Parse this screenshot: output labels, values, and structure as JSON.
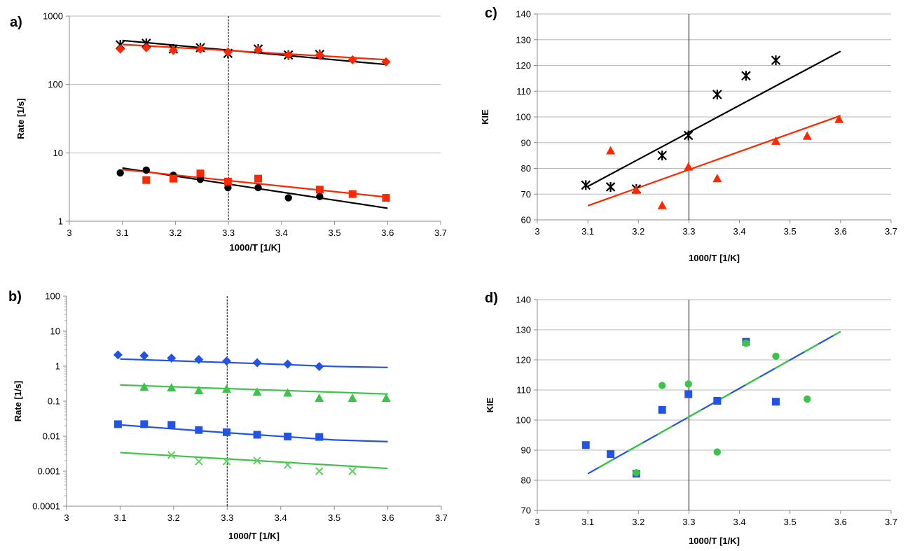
{
  "colors": {
    "black": "#000000",
    "red": "#ff2600",
    "blue": "#2353e6",
    "green": "#3cc34a",
    "light_green": "#5ed060",
    "grid": "#b9b9b9"
  },
  "chart_data": [
    {
      "panel": "a)",
      "type": "scatter",
      "xlabel": "1000/T  [1/K]",
      "ylabel": "Rate  [1/s]",
      "xlim": [
        3,
        3.7
      ],
      "xticks": [
        "3",
        "3.1",
        "3.2",
        "3.3",
        "3.4",
        "3.5",
        "3.6",
        "3.7"
      ],
      "ylim": [
        1,
        1000
      ],
      "yscale": "log",
      "yticks": [
        "1",
        "10",
        "100",
        "1000"
      ],
      "grid": "horizontal",
      "vline": 3.3,
      "series": [
        {
          "marker": "asterisk",
          "color": "black",
          "x": [
            3.096,
            3.145,
            3.196,
            3.247,
            3.299,
            3.356,
            3.413,
            3.472
          ],
          "y": [
            380,
            400,
            330,
            345,
            285,
            330,
            270,
            275
          ]
        },
        {
          "marker": "diamond",
          "color": "red",
          "x": [
            3.096,
            3.145,
            3.196,
            3.247,
            3.299,
            3.356,
            3.413,
            3.472,
            3.534,
            3.597
          ],
          "y": [
            330,
            345,
            315,
            330,
            300,
            320,
            270,
            270,
            230,
            215
          ]
        },
        {
          "marker": "circle",
          "color": "black",
          "x": [
            3.096,
            3.145,
            3.196,
            3.247,
            3.299,
            3.356,
            3.413,
            3.472
          ],
          "y": [
            5.1,
            5.6,
            4.7,
            4.1,
            3.1,
            3.1,
            2.2,
            2.3
          ]
        },
        {
          "marker": "square",
          "color": "red",
          "x": [
            3.145,
            3.196,
            3.247,
            3.299,
            3.356,
            3.472,
            3.534,
            3.597
          ],
          "y": [
            4.0,
            4.2,
            5.0,
            3.8,
            4.2,
            2.9,
            2.5,
            2.2
          ]
        }
      ],
      "fits": [
        {
          "color": "black",
          "x": [
            3.1,
            3.6
          ],
          "y": [
            440,
            195
          ]
        },
        {
          "color": "red",
          "x": [
            3.1,
            3.6
          ],
          "y": [
            385,
            230
          ]
        },
        {
          "color": "black",
          "x": [
            3.1,
            3.6
          ],
          "y": [
            6.0,
            1.55
          ]
        },
        {
          "color": "red",
          "x": [
            3.1,
            3.6
          ],
          "y": [
            5.7,
            2.25
          ]
        }
      ]
    },
    {
      "panel": "b)",
      "type": "scatter",
      "xlabel": "1000/T  [1/K]",
      "ylabel": "Rate  [1/s]",
      "xlim": [
        3,
        3.7
      ],
      "xticks": [
        "3",
        "3.1",
        "3.2",
        "3.3",
        "3.4",
        "3.5",
        "3.6",
        "3.7"
      ],
      "ylim": [
        0.0001,
        100
      ],
      "yscale": "log",
      "yticks": [
        "0.0001",
        "0.001",
        "0.01",
        "0.1",
        "1",
        "10",
        "100"
      ],
      "grid": "none",
      "vline": 3.3,
      "series": [
        {
          "marker": "diamond",
          "color": "blue",
          "x": [
            3.096,
            3.145,
            3.196,
            3.247,
            3.299,
            3.356,
            3.413,
            3.472
          ],
          "y": [
            2.1,
            2.0,
            1.7,
            1.55,
            1.4,
            1.25,
            1.15,
            0.98
          ]
        },
        {
          "marker": "triangle",
          "color": "green",
          "x": [
            3.145,
            3.196,
            3.247,
            3.299,
            3.356,
            3.413,
            3.472,
            3.534,
            3.597
          ],
          "y": [
            0.25,
            0.24,
            0.2,
            0.22,
            0.18,
            0.17,
            0.12,
            0.12,
            0.12
          ]
        },
        {
          "marker": "square",
          "color": "blue",
          "x": [
            3.096,
            3.145,
            3.196,
            3.247,
            3.299,
            3.356,
            3.413,
            3.472
          ],
          "y": [
            0.022,
            0.022,
            0.021,
            0.015,
            0.013,
            0.011,
            0.0098,
            0.0095
          ]
        },
        {
          "marker": "x",
          "color": "light_green",
          "x": [
            3.196,
            3.247,
            3.299,
            3.356,
            3.413,
            3.472,
            3.534
          ],
          "y": [
            0.0029,
            0.0019,
            0.0019,
            0.002,
            0.0015,
            0.001,
            0.001
          ]
        }
      ],
      "fits": [
        {
          "color": "blue",
          "x": [
            3.1,
            3.35,
            3.5,
            3.6
          ],
          "y": [
            1.6,
            1.2,
            0.98,
            0.92
          ]
        },
        {
          "color": "green",
          "x": [
            3.1,
            3.6
          ],
          "y": [
            0.29,
            0.16
          ]
        },
        {
          "color": "blue",
          "x": [
            3.1,
            3.3,
            3.5,
            3.6
          ],
          "y": [
            0.021,
            0.0125,
            0.0078,
            0.007
          ]
        },
        {
          "color": "green",
          "x": [
            3.1,
            3.6
          ],
          "y": [
            0.0034,
            0.0012
          ]
        }
      ]
    },
    {
      "panel": "c)",
      "type": "scatter",
      "xlabel": "1000/T  [1/K]",
      "ylabel": "KIE",
      "xlim": [
        3,
        3.7
      ],
      "xticks": [
        "3",
        "3.1",
        "3.2",
        "3.3",
        "3.4",
        "3.5",
        "3.6",
        "3.7"
      ],
      "ylim": [
        60,
        140
      ],
      "yscale": "linear",
      "yticks": [
        "60",
        "70",
        "80",
        "90",
        "100",
        "110",
        "120",
        "130",
        "140"
      ],
      "grid": "horizontal",
      "vline": 3.3,
      "series": [
        {
          "marker": "asterisk",
          "color": "black",
          "x": [
            3.096,
            3.145,
            3.196,
            3.247,
            3.299,
            3.356,
            3.413,
            3.472
          ],
          "y": [
            73.5,
            72.8,
            72,
            85,
            92.8,
            108.7,
            116,
            122
          ]
        },
        {
          "marker": "triangle",
          "color": "red",
          "x": [
            3.145,
            3.196,
            3.247,
            3.299,
            3.356,
            3.472,
            3.534,
            3.597
          ],
          "y": [
            86.8,
            71.5,
            65.5,
            80.5,
            76,
            90.5,
            92.5,
            99
          ]
        }
      ],
      "fits": [
        {
          "color": "black",
          "x": [
            3.1,
            3.6
          ],
          "y": [
            73,
            125.5
          ]
        },
        {
          "color": "red",
          "x": [
            3.1,
            3.6
          ],
          "y": [
            65.5,
            100.5
          ]
        }
      ]
    },
    {
      "panel": "d)",
      "type": "scatter",
      "xlabel": "1000/T  [1/K]",
      "ylabel": "KIE",
      "xlim": [
        3,
        3.7
      ],
      "xticks": [
        "3",
        "3.1",
        "3.2",
        "3.3",
        "3.4",
        "3.5",
        "3.6",
        "3.7"
      ],
      "ylim": [
        70,
        140
      ],
      "yscale": "linear",
      "yticks": [
        "70",
        "80",
        "90",
        "100",
        "110",
        "120",
        "130",
        "140"
      ],
      "grid": "horizontal",
      "vline": 3.3,
      "series": [
        {
          "marker": "square",
          "color": "blue",
          "x": [
            3.096,
            3.145,
            3.196,
            3.247,
            3.299,
            3.356,
            3.413,
            3.472
          ],
          "y": [
            91.7,
            88.7,
            82.2,
            103.4,
            108.6,
            106.4,
            126,
            106.1
          ]
        },
        {
          "marker": "circle",
          "color": "green",
          "x": [
            3.196,
            3.247,
            3.299,
            3.356,
            3.413,
            3.472,
            3.534
          ],
          "y": [
            82.5,
            111.5,
            112,
            89.4,
            125.5,
            121.2,
            107
          ]
        }
      ],
      "fits": [
        {
          "color": "blue",
          "x": [
            3.1,
            3.6
          ],
          "y": [
            82.2,
            129.4
          ],
          "dash_color": "green"
        }
      ]
    }
  ]
}
